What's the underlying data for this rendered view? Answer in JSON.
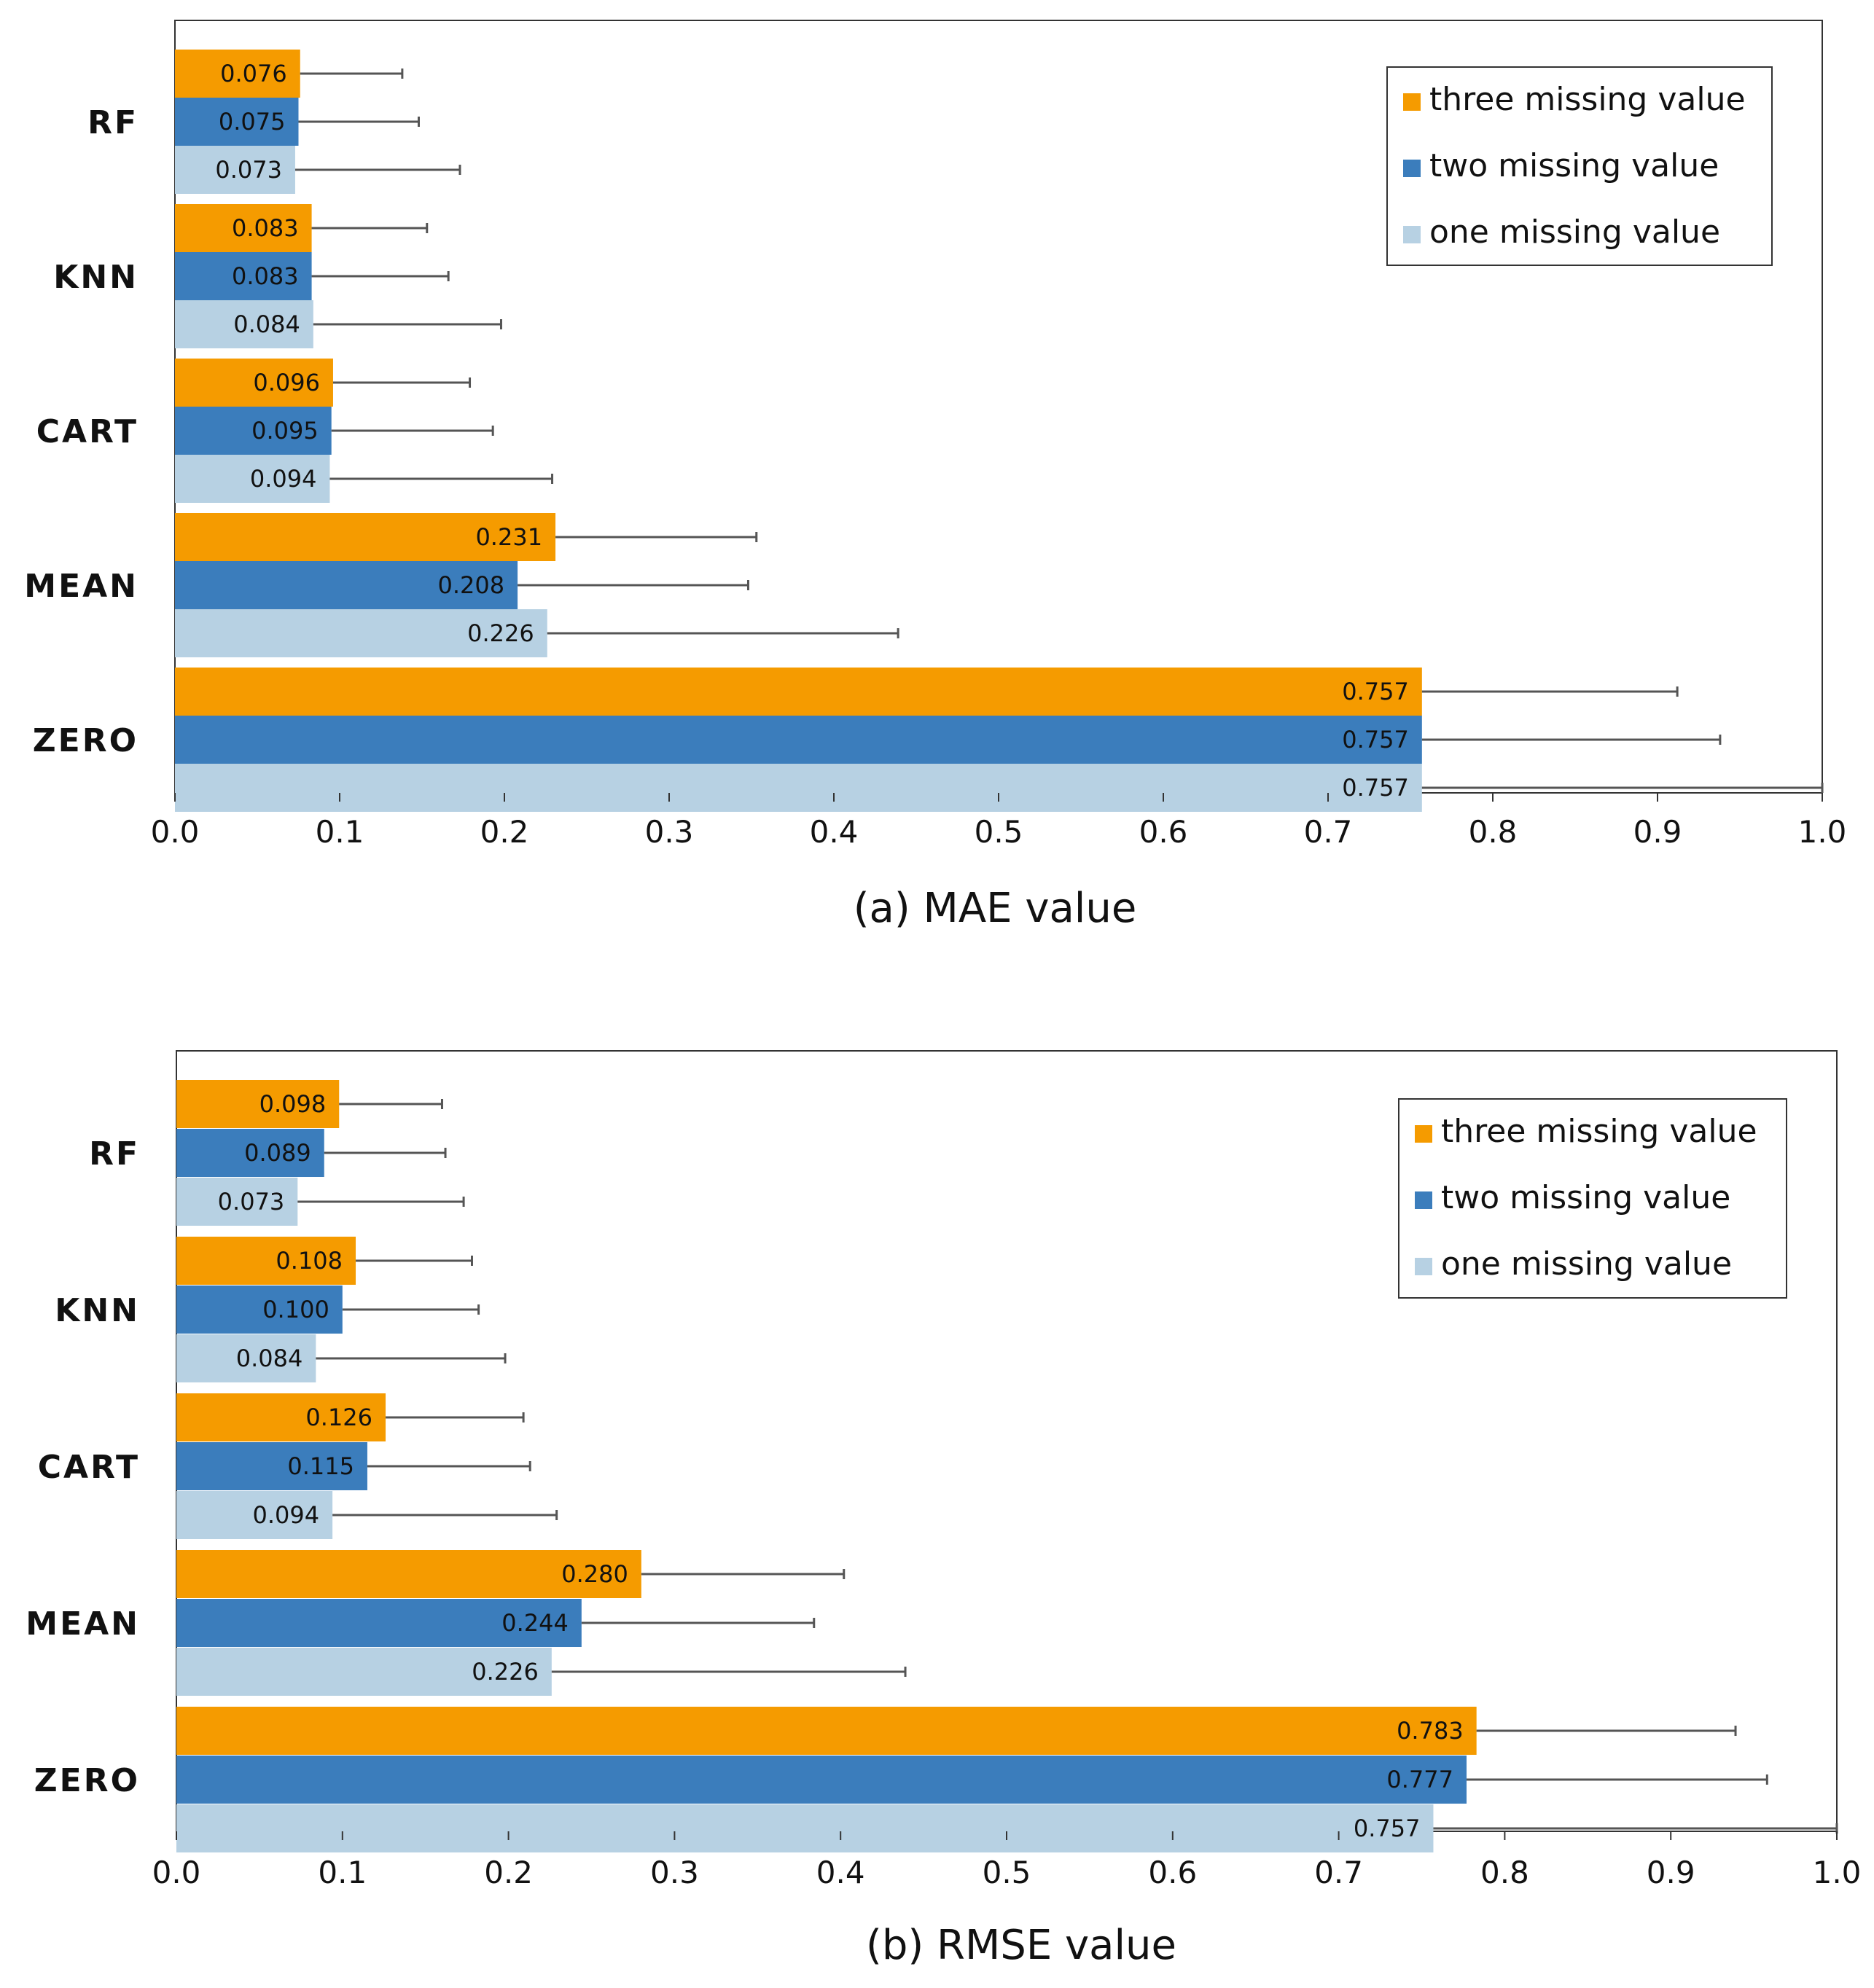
{
  "colors": {
    "three": "#f59b00",
    "two": "#3b7dbc",
    "one": "#b7d1e3",
    "error_bar": "#555555",
    "frame": "#333333"
  },
  "chart_data": [
    {
      "type": "bar",
      "orientation": "horizontal",
      "caption": "(a) MAE value",
      "categories": [
        "RF",
        "KNN",
        "CART",
        "MEAN",
        "ZERO"
      ],
      "xlim": [
        0,
        1.0
      ],
      "xticks": [
        "0.0",
        "0.1",
        "0.2",
        "0.3",
        "0.4",
        "0.5",
        "0.6",
        "0.7",
        "0.8",
        "0.9",
        "1.0"
      ],
      "grid": false,
      "legend_position": "top-right",
      "series": [
        {
          "name": "three missing value",
          "color_key": "three",
          "values": [
            0.076,
            0.083,
            0.096,
            0.231,
            0.757
          ],
          "labels": [
            "0.076",
            "0.083",
            "0.096",
            "0.231",
            "0.757"
          ],
          "error_upper": [
            0.138,
            0.153,
            0.179,
            0.353,
            0.912
          ]
        },
        {
          "name": "two missing value",
          "color_key": "two",
          "values": [
            0.075,
            0.083,
            0.095,
            0.208,
            0.757
          ],
          "labels": [
            "0.075",
            "0.083",
            "0.095",
            "0.208",
            "0.757"
          ],
          "error_upper": [
            0.148,
            0.166,
            0.193,
            0.348,
            0.938
          ]
        },
        {
          "name": "one missing value",
          "color_key": "one",
          "values": [
            0.073,
            0.084,
            0.094,
            0.226,
            0.757
          ],
          "labels": [
            "0.073",
            "0.084",
            "0.094",
            "0.226",
            "0.757"
          ],
          "error_upper": [
            0.173,
            0.198,
            0.229,
            0.439,
            1.0
          ]
        }
      ]
    },
    {
      "type": "bar",
      "orientation": "horizontal",
      "caption": "(b) RMSE value",
      "categories": [
        "RF",
        "KNN",
        "CART",
        "MEAN",
        "ZERO"
      ],
      "xlim": [
        0,
        1.0
      ],
      "xticks": [
        "0.0",
        "0.1",
        "0.2",
        "0.3",
        "0.4",
        "0.5",
        "0.6",
        "0.7",
        "0.8",
        "0.9",
        "1.0"
      ],
      "grid": false,
      "legend_position": "top-right",
      "series": [
        {
          "name": "three missing value",
          "color_key": "three",
          "values": [
            0.098,
            0.108,
            0.126,
            0.28,
            0.783
          ],
          "labels": [
            "0.098",
            "0.108",
            "0.126",
            "0.280",
            "0.783"
          ],
          "error_upper": [
            0.16,
            0.178,
            0.209,
            0.402,
            0.939
          ]
        },
        {
          "name": "two missing value",
          "color_key": "two",
          "values": [
            0.089,
            0.1,
            0.115,
            0.244,
            0.777
          ],
          "labels": [
            "0.089",
            "0.100",
            "0.115",
            "0.244",
            "0.777"
          ],
          "error_upper": [
            0.162,
            0.182,
            0.213,
            0.384,
            0.958
          ]
        },
        {
          "name": "one missing value",
          "color_key": "one",
          "values": [
            0.073,
            0.084,
            0.094,
            0.226,
            0.757
          ],
          "labels": [
            "0.073",
            "0.084",
            "0.094",
            "0.226",
            "0.757"
          ],
          "error_upper": [
            0.173,
            0.198,
            0.229,
            0.439,
            1.0
          ]
        }
      ]
    }
  ]
}
